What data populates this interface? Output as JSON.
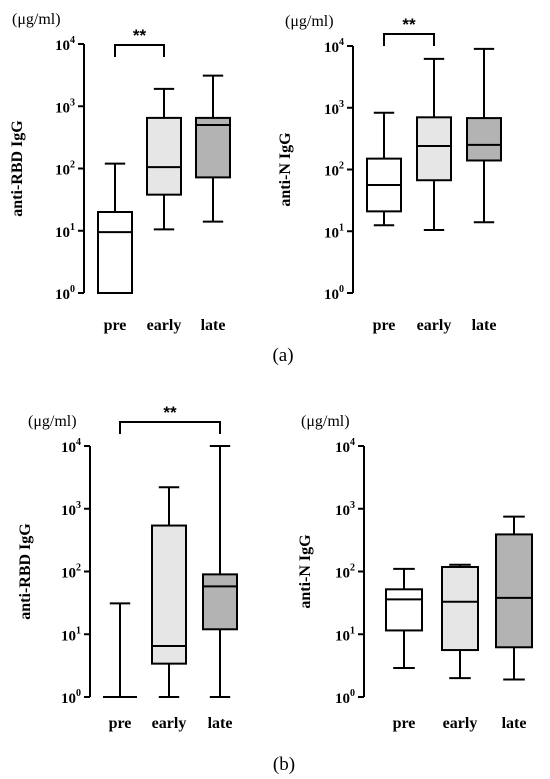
{
  "panel_labels": [
    "(a)",
    "(b)"
  ],
  "chart_data": [
    {
      "type": "boxplot",
      "panel": "(a)",
      "ylabel": "anti-RBD IgG",
      "unit": "(μg/ml)",
      "yscale": "log",
      "ylim": [
        1,
        10000
      ],
      "yticks": [
        {
          "base": "10",
          "exp": "0"
        },
        {
          "base": "10",
          "exp": "1"
        },
        {
          "base": "10",
          "exp": "2"
        },
        {
          "base": "10",
          "exp": "3"
        },
        {
          "base": "10",
          "exp": "4"
        }
      ],
      "categories": [
        "pre",
        "early",
        "late"
      ],
      "fills": [
        "#ffffff",
        "#e6e6e6",
        "#b3b3b3"
      ],
      "boxes": [
        {
          "min": 1,
          "q1": 1,
          "median": 9.5,
          "q3": 20,
          "max": 120
        },
        {
          "min": 10.5,
          "q1": 38,
          "median": 105,
          "q3": 650,
          "max": 1900
        },
        {
          "min": 14,
          "q1": 72,
          "median": 500,
          "q3": 650,
          "max": 3100
        }
      ],
      "significance": [
        {
          "from": 0,
          "to": 1,
          "label": "**"
        }
      ]
    },
    {
      "type": "boxplot",
      "panel": "(a)",
      "ylabel": "anti-N IgG",
      "unit": "(μg/ml)",
      "yscale": "log",
      "ylim": [
        1,
        10000
      ],
      "yticks": [
        {
          "base": "10",
          "exp": "0"
        },
        {
          "base": "10",
          "exp": "1"
        },
        {
          "base": "10",
          "exp": "2"
        },
        {
          "base": "10",
          "exp": "3"
        },
        {
          "base": "10",
          "exp": "4"
        }
      ],
      "categories": [
        "pre",
        "early",
        "late"
      ],
      "fills": [
        "#ffffff",
        "#e6e6e6",
        "#b3b3b3"
      ],
      "boxes": [
        {
          "min": 12.5,
          "q1": 21,
          "median": 56,
          "q3": 150,
          "max": 830
        },
        {
          "min": 10.5,
          "q1": 67,
          "median": 240,
          "q3": 700,
          "max": 6200
        },
        {
          "min": 14,
          "q1": 140,
          "median": 250,
          "q3": 680,
          "max": 9000
        }
      ],
      "significance": [
        {
          "from": 0,
          "to": 1,
          "label": "**"
        }
      ]
    },
    {
      "type": "boxplot",
      "panel": "(b)",
      "ylabel": "anti-RBD IgG",
      "unit": "(μg/ml)",
      "yscale": "log",
      "ylim": [
        1,
        10000
      ],
      "yticks": [
        {
          "base": "10",
          "exp": "0"
        },
        {
          "base": "10",
          "exp": "1"
        },
        {
          "base": "10",
          "exp": "2"
        },
        {
          "base": "10",
          "exp": "3"
        },
        {
          "base": "10",
          "exp": "4"
        }
      ],
      "categories": [
        "pre",
        "early",
        "late"
      ],
      "fills": [
        "#ffffff",
        "#e6e6e6",
        "#b3b3b3"
      ],
      "boxes": [
        {
          "min": 1,
          "q1": 1,
          "median": 1,
          "q3": 1,
          "max": 31
        },
        {
          "min": 1,
          "q1": 3.4,
          "median": 6.5,
          "q3": 540,
          "max": 2200
        },
        {
          "min": 1,
          "q1": 12,
          "median": 58,
          "q3": 90,
          "max": 10000
        }
      ],
      "significance": [
        {
          "from": 0,
          "to": 2,
          "label": "**"
        }
      ]
    },
    {
      "type": "boxplot",
      "panel": "(b)",
      "ylabel": "anti-N IgG",
      "unit": "(μg/ml)",
      "yscale": "log",
      "ylim": [
        1,
        10000
      ],
      "yticks": [
        {
          "base": "10",
          "exp": "0"
        },
        {
          "base": "10",
          "exp": "1"
        },
        {
          "base": "10",
          "exp": "2"
        },
        {
          "base": "10",
          "exp": "3"
        },
        {
          "base": "10",
          "exp": "4"
        }
      ],
      "categories": [
        "pre",
        "early",
        "late"
      ],
      "fills": [
        "#ffffff",
        "#e6e6e6",
        "#b3b3b3"
      ],
      "boxes": [
        {
          "min": 2.9,
          "q1": 11.5,
          "median": 36,
          "q3": 52,
          "max": 110
        },
        {
          "min": 2,
          "q1": 5.6,
          "median": 33,
          "q3": 118,
          "max": 128
        },
        {
          "min": 1.9,
          "q1": 6.2,
          "median": 38,
          "q3": 390,
          "max": 750
        }
      ],
      "significance": []
    }
  ]
}
